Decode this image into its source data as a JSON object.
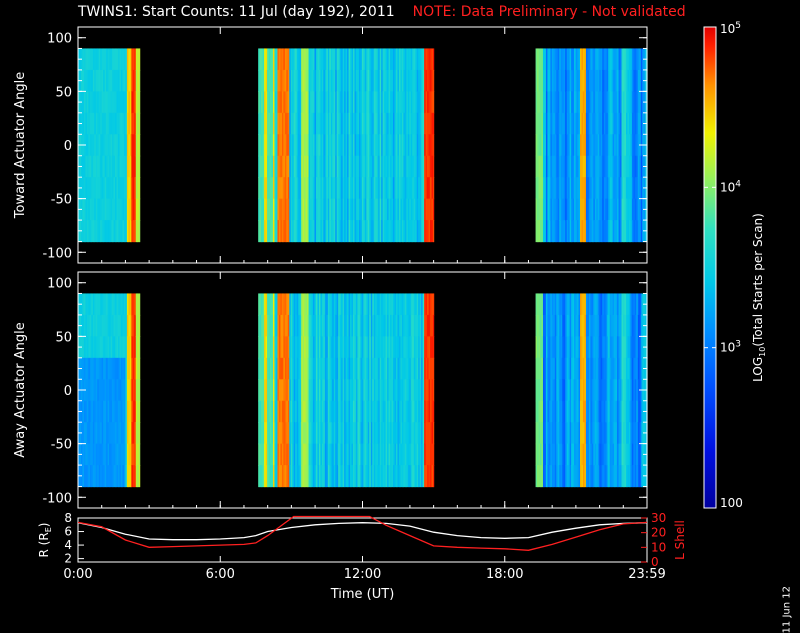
{
  "title": "TWINS1: Start Counts: 11 Jul (day 192), 2011",
  "note": "NOTE: Data Preliminary - Not validated",
  "stamp": "11 Jun 12",
  "colors": {
    "background": "#000000",
    "axes": "#ffffff",
    "note": "#ff2020",
    "l_shell_line": "#ff2020",
    "r_line": "#ffffff"
  },
  "chart_data": [
    {
      "type": "heatmap",
      "panel": "toward",
      "ylabel": "Toward Actuator Angle",
      "ylim": [
        -110,
        110
      ],
      "yticks": [
        "100",
        "50",
        "0",
        "-50",
        "-100"
      ],
      "xlim": [
        0,
        24
      ],
      "data_x_range": [
        0,
        24
      ],
      "data_y_range": [
        -90,
        90
      ],
      "value_scale": "log",
      "data_blocks": [
        {
          "start": 0.0,
          "end": 2.6
        },
        {
          "start": 7.6,
          "end": 15.0
        },
        {
          "start": 19.3,
          "end": 24.0
        }
      ]
    },
    {
      "type": "heatmap",
      "panel": "away",
      "ylabel": "Away Actuator Angle",
      "ylim": [
        -110,
        110
      ],
      "yticks": [
        "100",
        "50",
        "0",
        "-50",
        "-100"
      ],
      "xlim": [
        0,
        24
      ],
      "data_x_range": [
        0,
        24
      ],
      "data_y_range": [
        -90,
        90
      ],
      "value_scale": "log",
      "data_blocks": [
        {
          "start": 0.0,
          "end": 2.6
        },
        {
          "start": 7.6,
          "end": 15.0
        },
        {
          "start": 19.3,
          "end": 24.0
        }
      ]
    },
    {
      "type": "line",
      "panel": "orbit",
      "x_ticks": [
        "0:00",
        "6:00",
        "12:00",
        "18:00",
        "23:59"
      ],
      "x_tick_hours": [
        0,
        6,
        12,
        18,
        24
      ],
      "xlabel": "Time (UT)",
      "ylabel_left": "R (R",
      "ylabel_left_sub": "E",
      "ylabel_left_end": ")",
      "ylim_left": [
        1.5,
        8
      ],
      "yticks_left": [
        "8",
        "6",
        "4",
        "2"
      ],
      "ylabel_right": "L Shell",
      "ylim_right": [
        0,
        30
      ],
      "yticks_right": [
        "30",
        "20",
        "10",
        "0"
      ],
      "series": [
        {
          "axis": "left",
          "x": [
            0,
            1,
            2,
            3,
            4,
            5,
            6,
            7,
            7.5,
            8,
            9,
            10,
            11,
            12,
            13,
            14,
            15,
            16,
            17,
            18,
            19,
            20,
            21,
            22,
            23,
            24
          ],
          "values": [
            7.3,
            6.6,
            5.6,
            4.9,
            4.8,
            4.8,
            4.9,
            5.1,
            5.4,
            6.0,
            6.6,
            7.0,
            7.2,
            7.3,
            7.2,
            6.8,
            5.9,
            5.4,
            5.1,
            5.0,
            5.1,
            5.9,
            6.5,
            7.0,
            7.2,
            7.3
          ]
        },
        {
          "axis": "right",
          "x": [
            0,
            1,
            2,
            3,
            4,
            5,
            6,
            7,
            7.5,
            8,
            9.1,
            12.3,
            13,
            14,
            15,
            16,
            17,
            18,
            19,
            20,
            21,
            22,
            23,
            24
          ],
          "values": [
            27,
            24,
            15,
            10,
            10.5,
            11,
            11.5,
            12,
            13,
            18,
            31,
            31,
            25,
            18,
            11,
            10,
            9.5,
            9,
            8,
            12,
            17,
            22,
            26,
            27
          ]
        }
      ]
    },
    {
      "type": "colorbar",
      "label": "LOG",
      "label_sub": "10",
      "label_end": "(Total Starts per Scan)",
      "scale": "log",
      "range": [
        100,
        100000
      ],
      "ticks": [
        {
          "value": 100000,
          "base": "10",
          "exp": "5"
        },
        {
          "value": 10000,
          "base": "10",
          "exp": "4"
        },
        {
          "value": 1000,
          "base": "10",
          "exp": "3"
        },
        {
          "value": 100,
          "base": "100",
          "exp": ""
        }
      ]
    }
  ]
}
